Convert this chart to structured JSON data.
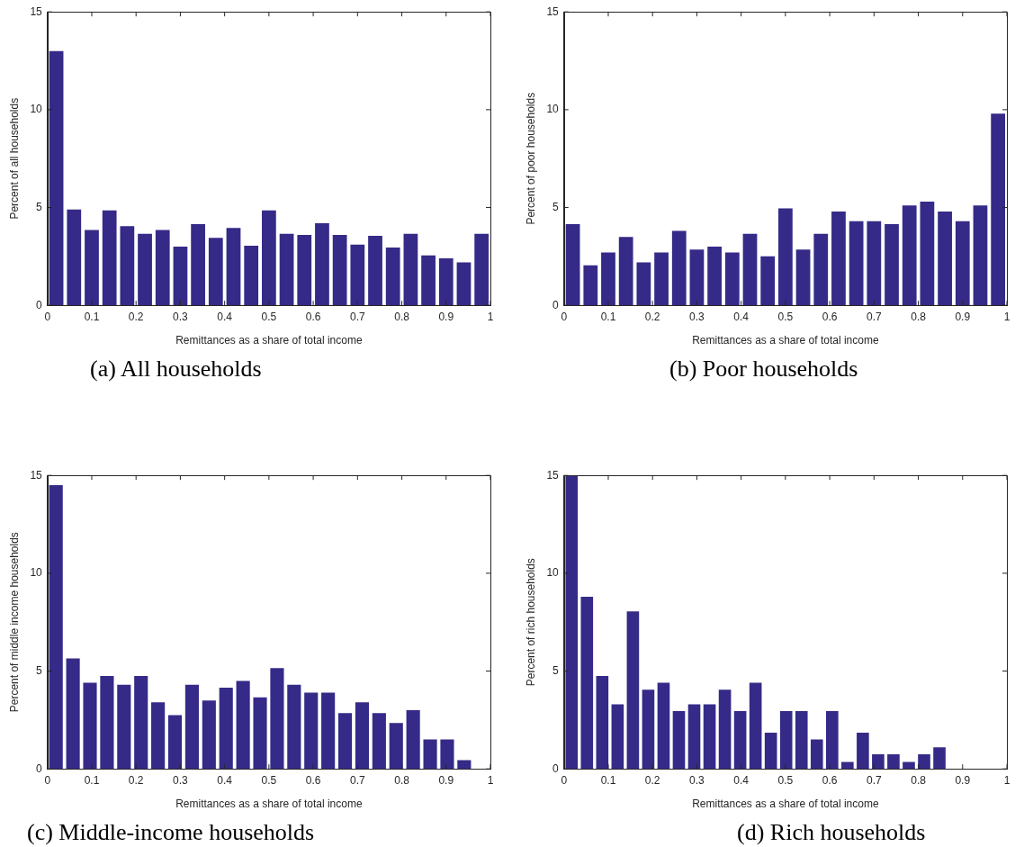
{
  "chart_data": [
    {
      "type": "histogram",
      "xlabel": "Remittances as a share of total income",
      "ylabel": "Percent of all households",
      "annotations": [
        "(a) All households"
      ],
      "color": "#352a87",
      "grid": false,
      "xlim": [
        0,
        1
      ],
      "xticks": [
        0,
        0.1,
        0.2,
        0.3,
        0.4,
        0.5,
        0.6,
        0.7,
        0.8,
        0.9,
        1
      ],
      "ylim": [
        0,
        15
      ],
      "yticks": [
        0,
        5,
        10,
        15
      ],
      "bins": [
        0,
        0.04,
        0.08,
        0.12,
        0.16,
        0.2,
        0.24,
        0.28,
        0.32,
        0.36,
        0.4,
        0.44,
        0.48,
        0.52,
        0.56,
        0.6,
        0.64,
        0.68,
        0.72,
        0.76,
        0.8,
        0.84,
        0.88,
        0.92,
        0.96,
        1
      ],
      "values": [
        13,
        4.9,
        3.85,
        4.85,
        4.05,
        3.65,
        3.85,
        3.0,
        4.15,
        3.45,
        3.95,
        3.05,
        4.85,
        3.65,
        3.6,
        4.2,
        3.6,
        3.1,
        3.55,
        2.95,
        3.65,
        2.55,
        2.4,
        2.2,
        3.65
      ]
    },
    {
      "type": "histogram",
      "xlabel": "Remittances as a share of total income",
      "ylabel": "Percent of poor households",
      "annotations": [
        "(b) Poor households"
      ],
      "color": "#352a87",
      "grid": false,
      "xlim": [
        0,
        1
      ],
      "xticks": [
        0,
        0.1,
        0.2,
        0.3,
        0.4,
        0.5,
        0.6,
        0.7,
        0.8,
        0.9,
        1
      ],
      "ylim": [
        0,
        15
      ],
      "yticks": [
        0,
        5,
        10,
        15
      ],
      "bins": [
        0,
        0.04,
        0.08,
        0.12,
        0.16,
        0.2,
        0.24,
        0.28,
        0.32,
        0.36,
        0.4,
        0.44,
        0.48,
        0.52,
        0.56,
        0.6,
        0.64,
        0.68,
        0.72,
        0.76,
        0.8,
        0.84,
        0.88,
        0.92,
        0.96,
        1
      ],
      "values": [
        4.15,
        2.05,
        2.7,
        3.5,
        2.2,
        2.7,
        3.8,
        2.85,
        3.0,
        2.7,
        3.65,
        2.5,
        4.95,
        2.85,
        3.65,
        4.8,
        4.3,
        4.3,
        4.15,
        5.1,
        5.3,
        4.8,
        4.3,
        5.1,
        9.8
      ]
    },
    {
      "type": "histogram",
      "xlabel": "Remittances as a share of total income",
      "ylabel": "Percent of middle income households",
      "annotations": [
        "(c) Middle-income households"
      ],
      "color": "#352a87",
      "grid": false,
      "xlim": [
        0,
        1
      ],
      "xticks": [
        0,
        0.1,
        0.2,
        0.3,
        0.4,
        0.5,
        0.6,
        0.7,
        0.8,
        0.9,
        1
      ],
      "ylim": [
        0,
        15
      ],
      "yticks": [
        0,
        5,
        10,
        15
      ],
      "bins": [
        0,
        0.0384,
        0.0768,
        0.1152,
        0.1536,
        0.192,
        0.2304,
        0.2688,
        0.3072,
        0.3456,
        0.384,
        0.4224,
        0.4608,
        0.4992,
        0.5376,
        0.576,
        0.6144,
        0.6528,
        0.6912,
        0.7296,
        0.768,
        0.8064,
        0.8448,
        0.8832,
        0.9216,
        0.96
      ],
      "values": [
        14.5,
        5.65,
        4.4,
        4.75,
        4.3,
        4.75,
        3.4,
        2.75,
        4.3,
        3.5,
        4.15,
        4.5,
        3.65,
        5.15,
        4.3,
        3.9,
        3.9,
        2.85,
        3.4,
        2.85,
        2.35,
        3.0,
        1.5,
        1.5,
        0.45
      ]
    },
    {
      "type": "histogram",
      "xlabel": "Remittances as a share of total income",
      "ylabel": "Percent of rich households",
      "annotations": [
        "(d) Rich households"
      ],
      "color": "#352a87",
      "grid": false,
      "xlim": [
        0,
        1
      ],
      "xticks": [
        0,
        0.1,
        0.2,
        0.3,
        0.4,
        0.5,
        0.6,
        0.7,
        0.8,
        0.9,
        1
      ],
      "ylim": [
        0,
        15
      ],
      "yticks": [
        0,
        5,
        10,
        15
      ],
      "bins": [
        0,
        0.0346,
        0.0692,
        0.1038,
        0.1384,
        0.173,
        0.2076,
        0.2422,
        0.2768,
        0.3114,
        0.346,
        0.3806,
        0.4152,
        0.4498,
        0.4844,
        0.519,
        0.5536,
        0.5882,
        0.6228,
        0.6574,
        0.692,
        0.7266,
        0.7612,
        0.7958,
        0.8304,
        0.865
      ],
      "values": [
        15,
        8.8,
        4.75,
        3.3,
        8.05,
        4.05,
        4.4,
        2.95,
        3.3,
        3.3,
        4.05,
        2.95,
        4.4,
        1.85,
        2.95,
        2.95,
        1.5,
        2.95,
        0.35,
        1.85,
        0.75,
        0.75,
        0.35,
        0.75,
        1.1
      ]
    }
  ]
}
